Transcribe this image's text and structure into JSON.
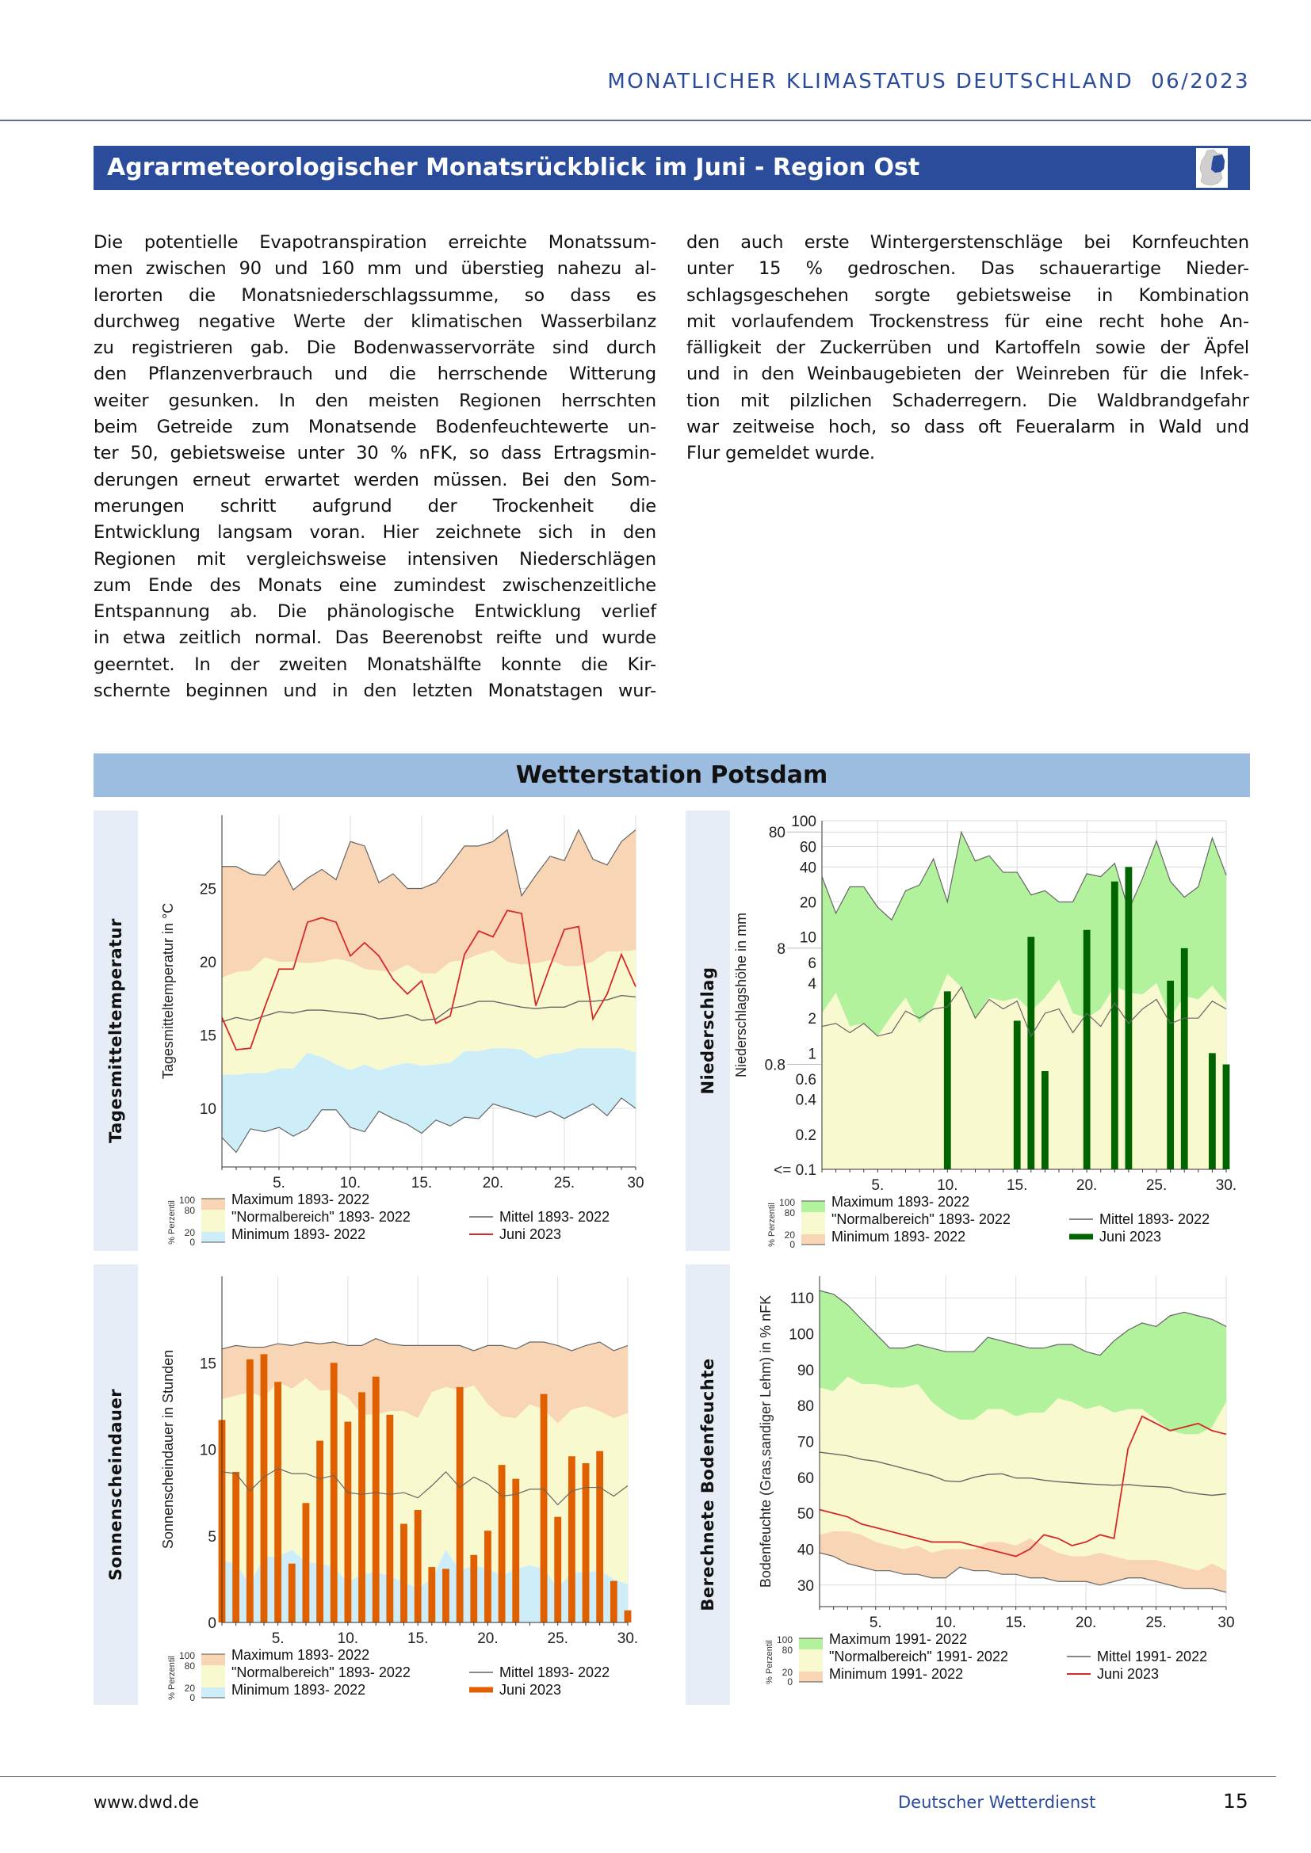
{
  "header": {
    "title": "MONATLICHER KLIMASTATUS DEUTSCHLAND",
    "issue": "06/2023"
  },
  "section": {
    "title": "Agrarmeteorologischer Monatsrückblick im Juni - Region Ost",
    "icon": "germany-map-region-east-icon",
    "accent": "#2b4c9b"
  },
  "body": {
    "left_lines": [
      "Die potentielle Evapotranspiration erreichte Monatssum-",
      "men zwischen 90 und 160 mm und überstieg nahezu al-",
      "lerorten die Monatsniederschlagssumme, so dass es",
      "durchweg negative Werte der klimatischen Wasserbilanz",
      "zu registrieren gab. Die Bodenwasservorräte sind durch",
      "den Pflanzenverbrauch und die herrschende Witterung",
      "weiter gesunken. In den meisten Regionen herrschten",
      "beim Getreide zum Monatsende Bodenfeuchtewerte un-",
      "ter 50, gebietsweise unter 30 % nFK, so dass Ertragsmin-",
      "derungen erneut erwartet werden müssen. Bei den Som-",
      "merungen schritt aufgrund der Trockenheit die",
      "Entwicklung langsam voran. Hier zeichnete sich in den",
      "Regionen mit vergleichsweise intensiven Niederschlägen",
      "zum Ende des Monats eine zumindest zwischenzeitliche",
      "Entspannung ab. Die phänologische Entwicklung verlief",
      "in etwa zeitlich normal. Das Beerenobst reifte und wurde",
      "geerntet. In der zweiten Monatshälfte konnte die Kir-",
      "schernte beginnen und in den letzten Monatstagen wur-"
    ],
    "right_lines": [
      "den auch erste Wintergerstenschläge bei Kornfeuchten",
      "unter 15 % gedroschen. Das schauerartige Nieder-",
      "schlagsgeschehen sorgte gebietsweise in Kombination",
      "mit vorlaufendem Trockenstress für eine recht hohe An-",
      "fälligkeit der Zuckerrüben und Kartoffeln sowie der Äpfel",
      "und in den Weinbaugebieten der Weinreben für die Infek-",
      "tion mit pilzlichen Schaderregern. Die Waldbrandgefahr",
      "war zeitweise hoch, so dass oft Feueralarm in Wald und",
      "Flur gemeldet wurde."
    ]
  },
  "station": {
    "title": "Wetterstation Potsdam"
  },
  "footer": {
    "url": "www.dwd.de",
    "org": "Deutscher Wetterdienst",
    "page": "15"
  },
  "chart_data": [
    {
      "id": "temp",
      "type": "line",
      "panel_label": "Tagesmitteltemperatur",
      "ylabel": "Tagesmitteltemperatur in °C",
      "ylim": [
        6,
        30
      ],
      "yscale": "linear",
      "yticks": [
        "10",
        "15",
        "20",
        "25"
      ],
      "xlim": [
        1,
        30
      ],
      "xticks": [
        "5.",
        "10.",
        "15.",
        "20.",
        "25.",
        "30"
      ],
      "grid": true,
      "percentile_label": "% Perzentil",
      "percentile_ticks": [
        "100",
        "80",
        "20",
        "0"
      ],
      "legend": {
        "max": "Maximum 1893- 2022",
        "normal": "\"Normalbereich\" 1893- 2022",
        "min": "Minimum 1893- 2022",
        "mean": "Mittel 1893- 2022",
        "actual": "Juni 2023"
      },
      "colors": {
        "upper": "#f8d5b5",
        "normal": "#f9f9cf",
        "lower": "#cdeef9",
        "actual": "#d42a2a",
        "mean": "#777777"
      },
      "actual_style": "line",
      "maximum": [
        26.5,
        26.5,
        26.0,
        25.9,
        26.9,
        24.9,
        25.7,
        26.3,
        25.6,
        28.2,
        27.9,
        25.4,
        26.0,
        25.0,
        25.0,
        25.4,
        26.6,
        27.9,
        27.9,
        28.2,
        29.0,
        24.5,
        25.9,
        27.2,
        26.9,
        29.0,
        27.0,
        26.6,
        28.2,
        29.0
      ],
      "p80": [
        18.9,
        19.3,
        19.4,
        20.3,
        20.0,
        20.0,
        19.9,
        20.0,
        20.2,
        20.0,
        19.5,
        19.4,
        19.3,
        19.8,
        19.2,
        19.2,
        20.0,
        20.1,
        20.5,
        20.8,
        20.0,
        19.8,
        19.9,
        20.1,
        19.7,
        19.7,
        20.0,
        20.7,
        20.7,
        20.8
      ],
      "p20": [
        12.3,
        12.3,
        12.4,
        12.4,
        12.7,
        12.7,
        13.8,
        13.5,
        13.0,
        12.6,
        13.0,
        12.6,
        12.9,
        13.1,
        12.9,
        13.0,
        13.1,
        13.9,
        13.9,
        14.1,
        14.1,
        14.0,
        13.4,
        13.7,
        13.8,
        14.1,
        14.1,
        14.1,
        14.1,
        13.8
      ],
      "minimum": [
        8.0,
        7.0,
        8.6,
        8.4,
        8.7,
        8.1,
        8.6,
        9.9,
        9.9,
        8.7,
        8.4,
        9.8,
        9.3,
        8.9,
        8.3,
        9.2,
        8.8,
        9.4,
        9.3,
        10.3,
        10.0,
        9.7,
        9.4,
        9.8,
        9.3,
        9.8,
        10.3,
        9.5,
        10.7,
        10.0
      ],
      "mean": [
        15.9,
        16.2,
        16.0,
        16.3,
        16.6,
        16.5,
        16.7,
        16.7,
        16.6,
        16.5,
        16.4,
        16.1,
        16.2,
        16.4,
        16.0,
        16.1,
        16.8,
        17.0,
        17.3,
        17.3,
        17.1,
        16.9,
        16.8,
        16.9,
        16.9,
        17.3,
        17.3,
        17.4,
        17.7,
        17.6
      ],
      "actual": [
        16.2,
        14.0,
        14.1,
        16.9,
        19.5,
        19.5,
        22.7,
        23.0,
        22.7,
        20.4,
        21.3,
        20.4,
        18.8,
        17.8,
        18.7,
        15.8,
        16.3,
        20.5,
        22.1,
        21.7,
        23.5,
        23.3,
        17.0,
        19.7,
        22.2,
        22.4,
        16.1,
        17.8,
        20.5,
        18.3
      ]
    },
    {
      "id": "precip",
      "type": "bar",
      "panel_label": "Niederschlag",
      "ylabel": "Niederschlagshöhe in mm",
      "ylim": [
        0.1,
        100
      ],
      "yscale": "log",
      "yticks": [
        "<= 0.1",
        "0.2",
        "0.4",
        "0.6",
        "0.8",
        "1",
        "2",
        "4",
        "6",
        "8",
        "10",
        "20",
        "40",
        "60",
        "80",
        "100"
      ],
      "xlim": [
        1,
        30
      ],
      "xticks": [
        "5.",
        "10.",
        "15.",
        "20.",
        "25.",
        "30."
      ],
      "grid": true,
      "percentile_label": "% Perzentil",
      "percentile_ticks": [
        "100",
        "80",
        "20",
        "0"
      ],
      "legend": {
        "max": "Maximum 1893- 2022",
        "normal": "\"Normalbereich\" 1893- 2022",
        "min": "Minimum 1893- 2022",
        "mean": "Mittel 1893- 2022",
        "actual": "Juni 2023"
      },
      "colors": {
        "upper": "#b2f29c",
        "normal": "#f9f9cf",
        "lower": "#f8d5b5",
        "actual": "#006400",
        "mean": "#777777"
      },
      "actual_style": "bar",
      "maximum": [
        33,
        16,
        27,
        27,
        18,
        14,
        25,
        28,
        47,
        20,
        80,
        45,
        50,
        36,
        36,
        23,
        25,
        20,
        20,
        35,
        33,
        43,
        17,
        32,
        67,
        30,
        22,
        27,
        71,
        34
      ],
      "p80": [
        2.2,
        3.3,
        1.7,
        1.8,
        1.4,
        2.1,
        3.0,
        1.8,
        2.5,
        4.8,
        3.7,
        2.0,
        3.0,
        2.8,
        3.0,
        2.3,
        3.0,
        4.3,
        2.2,
        2.0,
        2.4,
        3.8,
        3.3,
        3.2,
        4.0,
        2.0,
        3.1,
        2.9,
        3.8,
        2.7
      ],
      "p20": [
        0,
        0,
        0,
        0,
        0,
        0,
        0,
        0,
        0,
        0,
        0,
        0,
        0,
        0,
        0,
        0,
        0,
        0,
        0,
        0,
        0,
        0,
        0,
        0,
        0,
        0,
        0,
        0,
        0,
        0
      ],
      "minimum": [
        0,
        0,
        0,
        0,
        0,
        0,
        0,
        0,
        0,
        0,
        0,
        0,
        0,
        0,
        0,
        0,
        0,
        0,
        0,
        0,
        0,
        0,
        0,
        0,
        0,
        0,
        0,
        0,
        0,
        0
      ],
      "mean": [
        1.7,
        1.8,
        1.5,
        1.8,
        1.4,
        1.5,
        2.3,
        2.0,
        2.4,
        2.5,
        3.7,
        2.0,
        2.9,
        2.4,
        2.8,
        1.4,
        2.2,
        2.4,
        1.5,
        2.2,
        1.7,
        2.7,
        1.8,
        2.4,
        2.9,
        1.8,
        2.0,
        2.0,
        2.8,
        2.4
      ],
      "actual": [
        0,
        0,
        0,
        0,
        0,
        0,
        0,
        0,
        0,
        3.4,
        0,
        0,
        0,
        0,
        1.9,
        10,
        0.7,
        0,
        0,
        11.5,
        0,
        30,
        40,
        0,
        0,
        4.2,
        8,
        0,
        1,
        0.8
      ]
    },
    {
      "id": "sun",
      "type": "bar",
      "panel_label": "Sonnenscheindauer",
      "ylabel": "Sonnenscheindauer in Stunden",
      "ylim": [
        0,
        20
      ],
      "yscale": "linear",
      "yticks": [
        "0",
        "5",
        "10",
        "15"
      ],
      "xlim": [
        1,
        30
      ],
      "xticks": [
        "5.",
        "10.",
        "15.",
        "20.",
        "25.",
        "30."
      ],
      "grid": true,
      "percentile_label": "% Perzentil",
      "percentile_ticks": [
        "100",
        "80",
        "20",
        "0"
      ],
      "legend": {
        "max": "Maximum 1893- 2022",
        "normal": "\"Normalbereich\" 1893- 2022",
        "min": "Minimum 1893- 2022",
        "mean": "Mittel 1893- 2022",
        "actual": "Juni 2023"
      },
      "colors": {
        "upper": "#f8d5b5",
        "normal": "#f9f9cf",
        "lower": "#cdeef9",
        "actual": "#e06000",
        "mean": "#777777"
      },
      "actual_style": "bar",
      "maximum": [
        15.8,
        16.0,
        15.9,
        15.9,
        16.1,
        16.0,
        16.2,
        16.1,
        16.2,
        16.0,
        16.0,
        16.4,
        16.1,
        16.0,
        16.0,
        16.0,
        16.0,
        16.0,
        15.7,
        16.0,
        16.0,
        15.8,
        16.2,
        16.2,
        16.0,
        15.7,
        16.0,
        16.2,
        15.7,
        16.0
      ],
      "p80": [
        12.9,
        13.1,
        13.3,
        13.0,
        13.9,
        13.5,
        14.1,
        13.4,
        13.4,
        13.0,
        12.0,
        12.0,
        12.2,
        12.2,
        11.8,
        13.3,
        13.6,
        13.4,
        13.7,
        12.6,
        11.9,
        11.8,
        12.6,
        12.3,
        11.5,
        12.3,
        12.5,
        12.2,
        11.8,
        12.1
      ],
      "p20": [
        3.6,
        3.4,
        2.2,
        3.8,
        3.8,
        4.2,
        3.5,
        3.4,
        3.2,
        2.3,
        2.8,
        2.9,
        2.7,
        2.3,
        2.0,
        2.5,
        4.2,
        3.0,
        3.3,
        3.1,
        2.7,
        3.1,
        3.3,
        3.1,
        2.0,
        2.9,
        2.9,
        3.0,
        2.5,
        2.2
      ],
      "minimum": [
        0,
        0,
        0,
        0,
        0,
        0,
        0,
        0,
        0,
        0,
        0,
        0,
        0,
        0,
        0,
        0,
        0,
        0,
        0,
        0,
        0,
        0,
        0,
        0,
        0,
        0,
        0,
        0,
        0,
        0
      ],
      "mean": [
        8.7,
        8.6,
        7.6,
        8.4,
        8.9,
        8.6,
        8.6,
        8.3,
        8.5,
        7.5,
        7.4,
        7.5,
        7.4,
        7.5,
        7.2,
        7.9,
        8.7,
        7.8,
        8.4,
        8.0,
        7.3,
        7.4,
        7.7,
        7.7,
        6.8,
        7.6,
        7.8,
        7.8,
        7.3,
        7.9
      ],
      "actual": [
        11.7,
        8.7,
        15.2,
        15.5,
        13.9,
        3.4,
        6.9,
        10.5,
        15.0,
        11.6,
        13.3,
        14.2,
        12.0,
        5.7,
        6.5,
        3.2,
        3.1,
        13.6,
        3.9,
        5.3,
        9.1,
        8.3,
        0,
        13.2,
        6.1,
        9.6,
        9.2,
        9.9,
        2.4,
        0.7
      ]
    },
    {
      "id": "soil",
      "type": "line",
      "panel_label": "Berechnete Bodenfeuchte",
      "ylabel": "Bodenfeuchte (Gras,sandiger Lehm) in % nFK",
      "ylim": [
        24,
        116
      ],
      "yscale": "linear",
      "yticks": [
        "30",
        "40",
        "50",
        "60",
        "70",
        "80",
        "90",
        "100",
        "110"
      ],
      "xlim": [
        1,
        30
      ],
      "xticks": [
        "5.",
        "10.",
        "15.",
        "20.",
        "25.",
        "30"
      ],
      "grid": true,
      "percentile_label": "% Perzentil",
      "percentile_ticks": [
        "100",
        "80",
        "20",
        "0"
      ],
      "legend": {
        "max": "Maximum 1991- 2022",
        "normal": "\"Normalbereich\" 1991- 2022",
        "min": "Minimum 1991- 2022",
        "mean": "Mittel 1991- 2022",
        "actual": "Juni 2023"
      },
      "colors": {
        "upper": "#b2f29c",
        "normal": "#f9f9cf",
        "lower": "#f8d5b5",
        "actual": "#d42a2a",
        "mean": "#777777"
      },
      "actual_style": "line",
      "maximum": [
        112,
        111,
        108,
        104,
        100,
        96,
        96,
        97,
        96,
        95,
        95,
        95,
        99,
        98,
        97,
        96,
        96,
        97,
        97,
        95,
        94,
        98,
        101,
        103,
        102,
        105,
        106,
        105,
        104,
        102
      ],
      "p80": [
        85,
        84,
        88,
        86,
        86,
        85,
        85,
        86,
        81,
        78,
        76,
        76,
        79,
        79,
        77,
        78,
        78,
        82,
        81,
        79,
        80,
        78,
        79,
        79,
        76,
        73,
        72,
        72,
        74,
        81
      ],
      "p20": [
        44,
        45,
        45,
        44,
        42,
        41,
        40,
        41,
        39,
        40,
        40,
        40,
        42,
        42,
        41,
        43,
        41,
        39,
        38,
        38,
        39,
        38,
        37,
        37,
        37,
        36,
        35,
        34,
        36,
        34
      ],
      "minimum": [
        39,
        38,
        36,
        35,
        34,
        34,
        33,
        33,
        32,
        32,
        35,
        34,
        34,
        33,
        33,
        32,
        32,
        31,
        31,
        31,
        30,
        31,
        32,
        32,
        31,
        30,
        29,
        29,
        29,
        28
      ],
      "mean": [
        67,
        66.5,
        66,
        65,
        64.5,
        63.5,
        62.5,
        61.5,
        60.5,
        59,
        58.8,
        60,
        60.8,
        61,
        59.8,
        59.8,
        59.2,
        58.8,
        58.5,
        58.2,
        58,
        57.8,
        58,
        57.6,
        57.4,
        57.2,
        56,
        55.4,
        55,
        55.4
      ],
      "actual": [
        51,
        50,
        49,
        47,
        46,
        45,
        44,
        43,
        42,
        42,
        42,
        41,
        40,
        39,
        38,
        40,
        44,
        43,
        41,
        42,
        44,
        43,
        68,
        77,
        75,
        73,
        74,
        75,
        73,
        72
      ]
    }
  ]
}
